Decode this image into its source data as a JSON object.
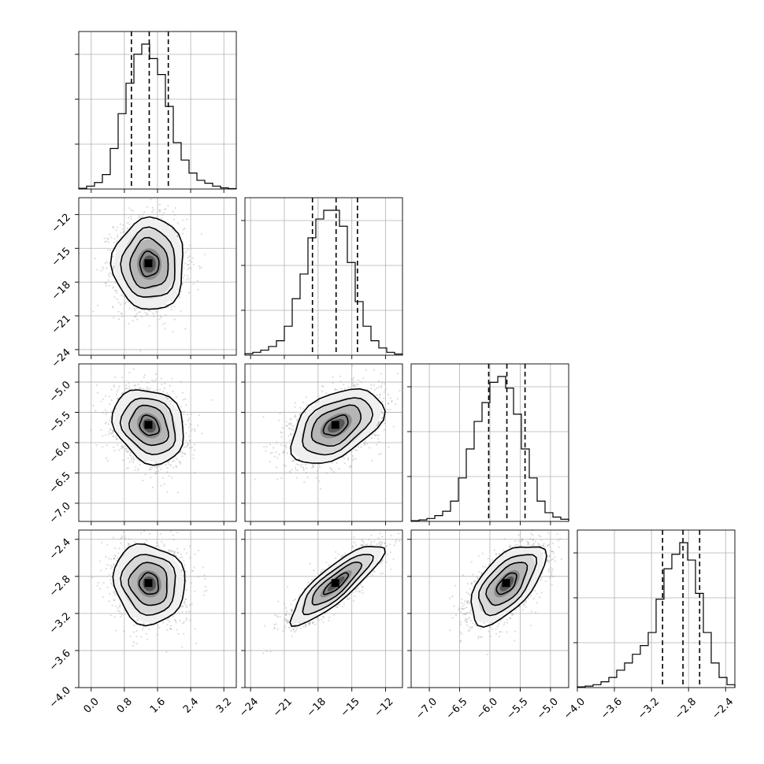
{
  "chart_data": {
    "type": "corner",
    "params": [
      {
        "mean": 1.4,
        "sd": 0.42,
        "q16": 0.97,
        "q50": 1.4,
        "q84": 1.86,
        "range": [
          -0.3,
          3.5
        ],
        "ticks": [
          "0.0",
          "0.8",
          "1.6",
          "2.4",
          "3.2"
        ],
        "tick_values": [
          0.0,
          0.8,
          1.6,
          2.4,
          3.2
        ],
        "hist": [
          0.005,
          0.02,
          0.045,
          0.1,
          0.28,
          0.52,
          0.73,
          0.93,
          1.0,
          0.9,
          0.79,
          0.57,
          0.32,
          0.2,
          0.11,
          0.06,
          0.04,
          0.02,
          0.008,
          0.003
        ]
      },
      {
        "mean": -16.4,
        "sd": 2.0,
        "q16": -18.5,
        "q50": -16.4,
        "q84": -14.5,
        "range": [
          -24.5,
          -10.5
        ],
        "ticks": [
          "-24",
          "-21",
          "-18",
          "-15",
          "-12"
        ],
        "tick_values": [
          -24,
          -21,
          -18,
          -15,
          -12
        ],
        "hist": [
          0.01,
          0.02,
          0.035,
          0.06,
          0.1,
          0.2,
          0.39,
          0.56,
          0.81,
          0.94,
          1.0,
          1.0,
          0.89,
          0.64,
          0.37,
          0.2,
          0.1,
          0.05,
          0.02,
          0.008
        ]
      },
      {
        "mean": -5.72,
        "sd": 0.3,
        "q16": -6.02,
        "q50": -5.72,
        "q84": -5.42,
        "range": [
          -7.3,
          -4.7
        ],
        "ticks": [
          "-7.0",
          "-6.5",
          "-6.0",
          "-5.5",
          "-5.0"
        ],
        "tick_values": [
          -7.0,
          -6.5,
          -6.0,
          -5.5,
          -5.0
        ],
        "hist": [
          0.005,
          0.01,
          0.02,
          0.04,
          0.07,
          0.14,
          0.3,
          0.5,
          0.69,
          0.82,
          0.96,
          1.0,
          0.92,
          0.74,
          0.5,
          0.3,
          0.14,
          0.06,
          0.03,
          0.015
        ]
      },
      {
        "mean": -2.88,
        "sd": 0.21,
        "q16": -3.08,
        "q50": -2.86,
        "q84": -2.68,
        "range": [
          -4.0,
          -2.3
        ],
        "ticks": [
          "-4.0",
          "-3.6",
          "-3.2",
          "-2.8",
          "-2.4"
        ],
        "tick_values": [
          -4.0,
          -3.6,
          -3.2,
          -2.8,
          -2.4
        ],
        "hist": [
          0.005,
          0.01,
          0.02,
          0.04,
          0.07,
          0.12,
          0.17,
          0.23,
          0.29,
          0.38,
          0.61,
          0.82,
          0.92,
          1.0,
          0.88,
          0.65,
          0.38,
          0.17,
          0.07,
          0.02
        ]
      }
    ],
    "correlations": [
      [
        1.0,
        0.0,
        -0.2,
        -0.08
      ],
      [
        0.0,
        1.0,
        0.45,
        0.85
      ],
      [
        -0.2,
        0.45,
        1.0,
        0.6
      ],
      [
        -0.08,
        0.85,
        0.6,
        1.0
      ]
    ],
    "diagonal_qlines": [
      "q16",
      "q50",
      "q84"
    ],
    "grid": true
  }
}
